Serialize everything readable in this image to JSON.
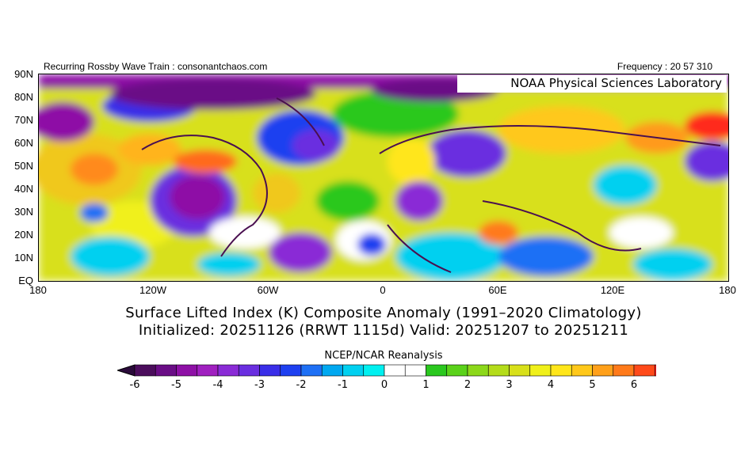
{
  "header": {
    "left": "Recurring Rossby Wave Train : consonantchaos.com",
    "right": "Frequency : 20 57 310",
    "lab": "NOAA Physical Sciences Laboratory"
  },
  "axes": {
    "lat_labels": [
      "90N",
      "80N",
      "70N",
      "60N",
      "50N",
      "40N",
      "30N",
      "20N",
      "10N",
      "EQ"
    ],
    "lon_labels": [
      "180",
      "120W",
      "60W",
      "0",
      "60E",
      "120E",
      "180"
    ]
  },
  "titles": {
    "line1": "Surface Lifted Index (K) Composite Anomaly (1991–2020 Climatology)",
    "line2": "Initialized: 20251126 (RRWT 1115d) Valid: 20251207 to 20251211",
    "source": "NCEP/NCAR Reanalysis"
  },
  "colorbar": {
    "labels": [
      "-6",
      "-5",
      "-4",
      "-3",
      "-2",
      "-1",
      "0",
      "1",
      "2",
      "3",
      "4",
      "5",
      "6"
    ],
    "colors": [
      "#4b0d5c",
      "#6a0d86",
      "#8e10a6",
      "#a020c0",
      "#8a2bd6",
      "#6a2ee0",
      "#3a2ee8",
      "#1e40f0",
      "#1e70f5",
      "#00a8f0",
      "#00d0f0",
      "#00f0f0",
      "#ffffff",
      "#ffffff",
      "#2ac81e",
      "#5ad21a",
      "#8cd81a",
      "#b4dc1a",
      "#d8e01a",
      "#f0f01a",
      "#ffe61a",
      "#ffc81a",
      "#ffa01a",
      "#ff7a1a",
      "#ff4a1a",
      "#ff1a1a"
    ]
  }
}
